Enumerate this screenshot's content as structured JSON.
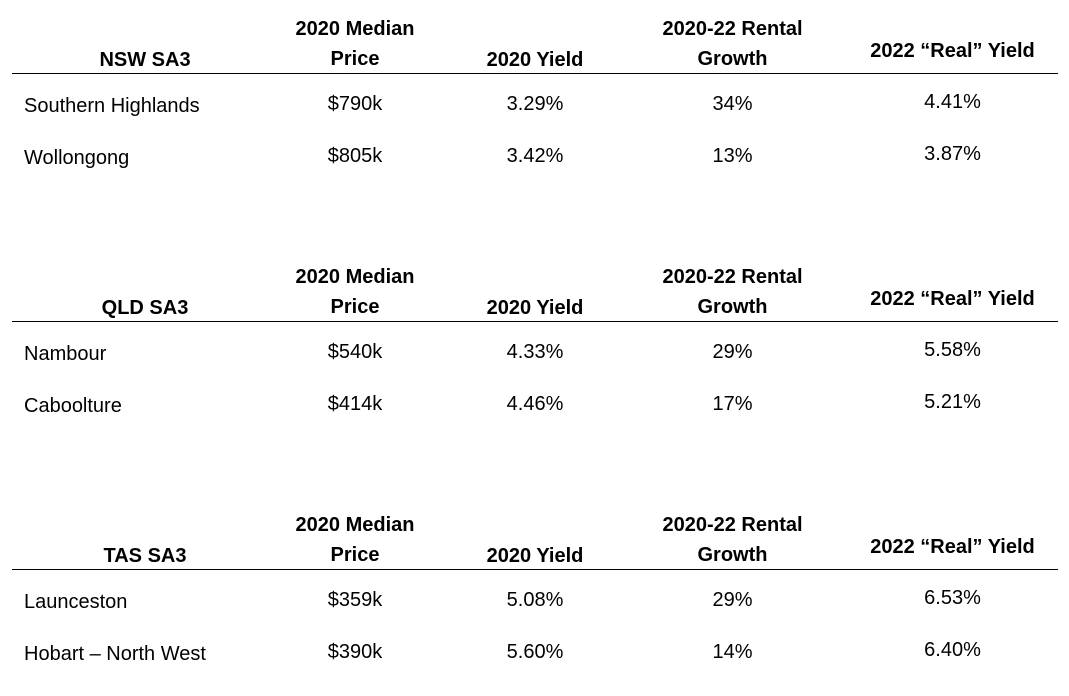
{
  "headers": {
    "price": [
      "2020 Median",
      "Price"
    ],
    "yield": "2020 Yield",
    "growth": [
      "2020-22 Rental",
      "Growth"
    ],
    "real_yield": "2022 “Real” Yield"
  },
  "sections": [
    {
      "region_header": "NSW SA3",
      "rows": [
        {
          "region": "Southern Highlands",
          "price": "$790k",
          "yield": "3.29%",
          "growth": "34%",
          "real_yield": "4.41%"
        },
        {
          "region": "Wollongong",
          "price": "$805k",
          "yield": "3.42%",
          "growth": "13%",
          "real_yield": "3.87%"
        }
      ]
    },
    {
      "region_header": "QLD SA3",
      "rows": [
        {
          "region": "Nambour",
          "price": "$540k",
          "yield": "4.33%",
          "growth": "29%",
          "real_yield": "5.58%"
        },
        {
          "region": "Caboolture",
          "price": "$414k",
          "yield": "4.46%",
          "growth": "17%",
          "real_yield": "5.21%"
        }
      ]
    },
    {
      "region_header": "TAS SA3",
      "rows": [
        {
          "region": "Launceston",
          "price": "$359k",
          "yield": "5.08%",
          "growth": "29%",
          "real_yield": "6.53%"
        },
        {
          "region": "Hobart – North West",
          "price": "$390k",
          "yield": "5.60%",
          "growth": "14%",
          "real_yield": "6.40%"
        }
      ]
    }
  ]
}
